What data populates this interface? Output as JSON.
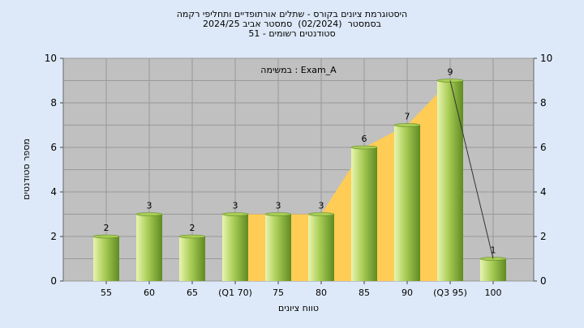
{
  "chart_data": {
    "type": "bar",
    "title_lines": [
      "היסטוגרמת ציונים בקורס - שתלים אורתופדיים ותחליפי רקמה",
      "בסמסטר  (02/2024)  סמסטר אביב 2024/25",
      "סטודנטים רשומים - 51"
    ],
    "subtitle": "במשימה : Exam_A",
    "xlabel": "טווח ציונים",
    "ylabel": "מספר סטודנטים",
    "categories": [
      "55",
      "60",
      "65",
      "(Q1 70)",
      "75",
      "80",
      "85",
      "90",
      "(Q3 95)",
      "100"
    ],
    "values": [
      2,
      3,
      2,
      3,
      3,
      3,
      6,
      7,
      9,
      1
    ],
    "data_labels": [
      "2",
      "3",
      "2",
      "3",
      "3",
      "3",
      "6",
      "7",
      "9",
      "1"
    ],
    "ylim": [
      0,
      10
    ],
    "yticks": [
      "0",
      "2",
      "4",
      "6",
      "8",
      "10"
    ],
    "grid": true,
    "quartile_band": {
      "from_category": "(Q1 70)",
      "to_category": "(Q3 95)"
    },
    "colors": {
      "plot_bg": "#c0c0c0",
      "bar_light": "#e8f5b0",
      "bar_mid": "#a8cc55",
      "bar_dark": "#5f8a22",
      "band": "#ffcc55",
      "page_bg": "#dde9f8"
    }
  }
}
